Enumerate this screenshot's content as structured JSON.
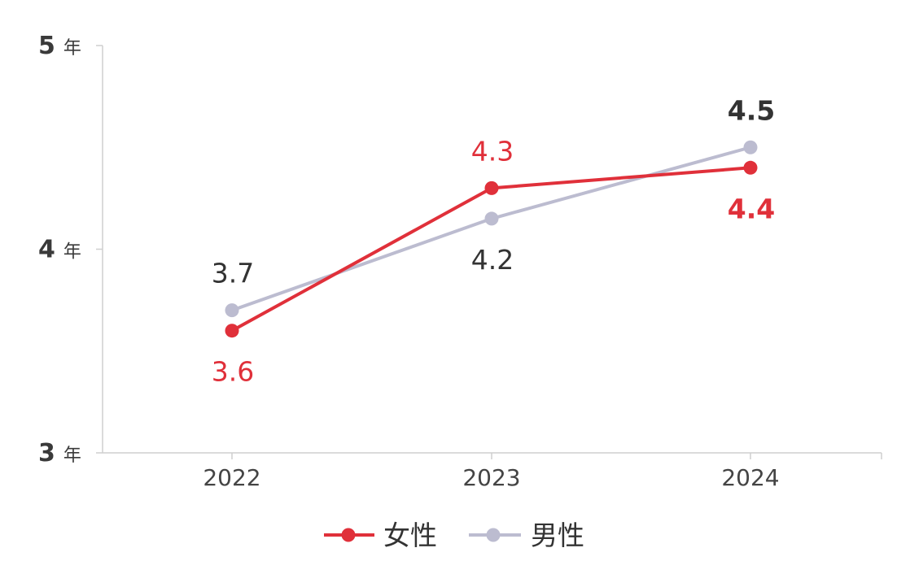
{
  "chart_data": {
    "type": "line",
    "categories": [
      "2022",
      "2023",
      "2024"
    ],
    "ylim": [
      3,
      5
    ],
    "yticks": [
      {
        "value": 5,
        "num": "5",
        "unit": "年"
      },
      {
        "value": 4,
        "num": "4",
        "unit": "年"
      },
      {
        "value": 3,
        "num": "3",
        "unit": "年"
      }
    ],
    "grid": false,
    "legend_position": "bottom",
    "series": [
      {
        "name": "女性",
        "color": "#e0303a",
        "values": [
          3.6,
          4.3,
          4.4
        ],
        "labels": [
          "3.6",
          "4.3",
          "4.4"
        ],
        "label_positions": [
          "below",
          "above",
          "below"
        ],
        "label_bold": [
          false,
          false,
          true
        ]
      },
      {
        "name": "男性",
        "color": "#bcbcd0",
        "label_color": "#333333",
        "values": [
          3.7,
          4.15,
          4.5
        ],
        "labels": [
          "3.7",
          "4.2",
          "4.5"
        ],
        "label_positions": [
          "above",
          "below",
          "above"
        ],
        "label_bold": [
          false,
          false,
          true
        ]
      }
    ]
  }
}
